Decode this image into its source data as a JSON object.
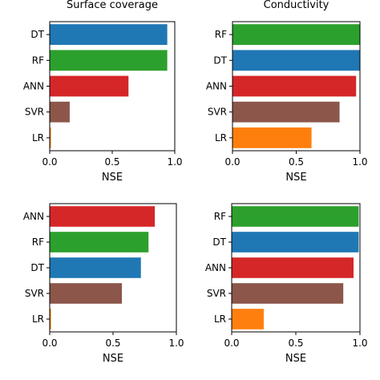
{
  "chart_data": [
    {
      "type": "bar",
      "orientation": "horizontal",
      "title": "Surface coverage",
      "xlabel": "NSE",
      "ylabel": "",
      "xlim": [
        0,
        1.0
      ],
      "xticks": [
        "0.0",
        "0.5",
        "1.0"
      ],
      "categories": [
        "DT",
        "RF",
        "ANN",
        "SVR",
        "LR"
      ],
      "values": [
        0.94,
        0.94,
        0.63,
        0.16,
        0.01
      ],
      "colors": [
        "#1f77b4",
        "#2ca02c",
        "#d62728",
        "#8c564b",
        "#ff7f0e"
      ],
      "grid": false
    },
    {
      "type": "bar",
      "orientation": "horizontal",
      "title": "Conductivity",
      "xlabel": "NSE",
      "ylabel": "",
      "xlim": [
        0,
        1.0
      ],
      "xticks": [
        "0.0",
        "0.5",
        "1.0"
      ],
      "categories": [
        "RF",
        "DT",
        "ANN",
        "SVR",
        "LR"
      ],
      "values": [
        1.0,
        1.0,
        0.97,
        0.84,
        0.62
      ],
      "colors": [
        "#2ca02c",
        "#1f77b4",
        "#d62728",
        "#8c564b",
        "#ff7f0e"
      ],
      "grid": false
    },
    {
      "type": "bar",
      "orientation": "horizontal",
      "title": "",
      "xlabel": "NSE",
      "ylabel": "",
      "xlim": [
        0,
        1.0
      ],
      "xticks": [
        "0.0",
        "0.5",
        "1.0"
      ],
      "categories": [
        "ANN",
        "RF",
        "DT",
        "SVR",
        "LR"
      ],
      "values": [
        0.83,
        0.78,
        0.72,
        0.57,
        0.01
      ],
      "colors": [
        "#d62728",
        "#2ca02c",
        "#1f77b4",
        "#8c564b",
        "#ff7f0e"
      ],
      "grid": false
    },
    {
      "type": "bar",
      "orientation": "horizontal",
      "title": "",
      "xlabel": "NSE",
      "ylabel": "",
      "xlim": [
        0,
        1.0
      ],
      "xticks": [
        "0.0",
        "0.5",
        "1.0"
      ],
      "categories": [
        "RF",
        "DT",
        "ANN",
        "SVR",
        "LR"
      ],
      "values": [
        0.99,
        0.99,
        0.95,
        0.87,
        0.25
      ],
      "colors": [
        "#2ca02c",
        "#1f77b4",
        "#d62728",
        "#8c564b",
        "#ff7f0e"
      ],
      "grid": false
    }
  ]
}
